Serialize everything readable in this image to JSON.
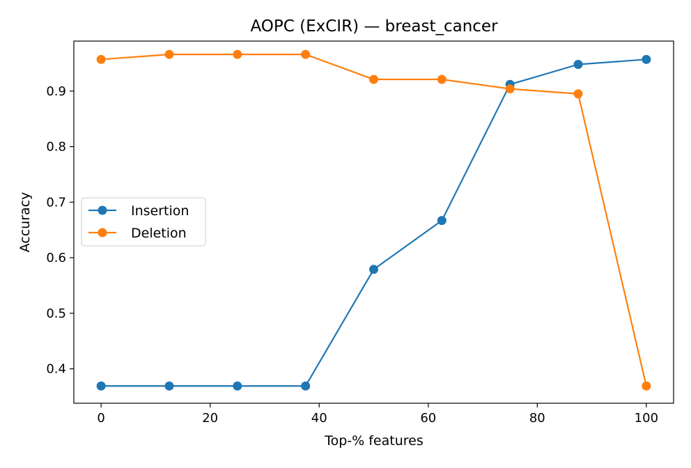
{
  "chart_data": {
    "type": "line",
    "title": "AOPC (ExCIR) — breast_cancer",
    "xlabel": "Top-% features",
    "ylabel": "Accuracy",
    "xlim": [
      -5,
      105
    ],
    "ylim": [
      0.338,
      0.99
    ],
    "xticks": [
      0,
      20,
      40,
      60,
      80,
      100
    ],
    "xtick_labels": [
      "0",
      "20",
      "40",
      "60",
      "80",
      "100"
    ],
    "yticks": [
      0.4,
      0.5,
      0.6,
      0.7,
      0.8,
      0.9
    ],
    "ytick_labels": [
      "0.4",
      "0.5",
      "0.6",
      "0.7",
      "0.8",
      "0.9"
    ],
    "grid": false,
    "legend_position": "center-left",
    "x": [
      0,
      12.5,
      25,
      37.5,
      50,
      62.5,
      75,
      87.5,
      100
    ],
    "series": [
      {
        "name": "Insertion",
        "color": "#1f77b4",
        "marker": "circle",
        "values": [
          0.369,
          0.369,
          0.369,
          0.369,
          0.579,
          0.667,
          0.912,
          0.948,
          0.957
        ]
      },
      {
        "name": "Deletion",
        "color": "#ff7f0e",
        "marker": "circle",
        "values": [
          0.957,
          0.966,
          0.966,
          0.966,
          0.921,
          0.921,
          0.904,
          0.895,
          0.369
        ]
      }
    ]
  }
}
